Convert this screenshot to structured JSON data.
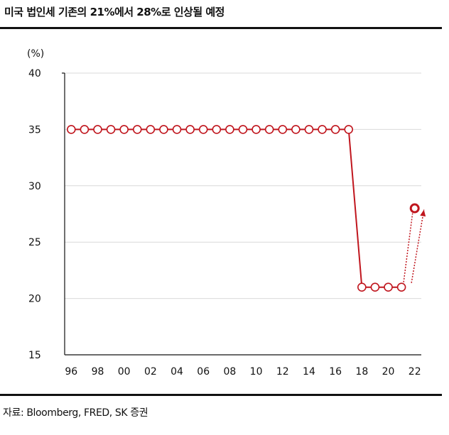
{
  "title": "미국 법인세 기존의 21%에서 28%로 인상될 예정",
  "source": "자료: Bloomberg, FRED, SK 증권",
  "colors": {
    "series": "#c0161e",
    "grid": "#d9d9d9",
    "axis": "#111111"
  },
  "chart_data": {
    "type": "line",
    "ylabel": "(%)",
    "ylim": [
      15,
      40
    ],
    "y_ticks": [
      "15",
      "20",
      "25",
      "30",
      "35",
      "40"
    ],
    "x_ticks": [
      "96",
      "98",
      "00",
      "02",
      "04",
      "06",
      "08",
      "10",
      "12",
      "14",
      "16",
      "18",
      "20",
      "22"
    ],
    "grid": "horizontal",
    "series": [
      {
        "x": [
          1996,
          1997,
          1998,
          1999,
          2000,
          2001,
          2002,
          2003,
          2004,
          2005,
          2006,
          2007,
          2008,
          2009,
          2010,
          2011,
          2012,
          2013,
          2014,
          2015,
          2016,
          2017,
          2018,
          2019,
          2020,
          2021
        ],
        "values": [
          35,
          35,
          35,
          35,
          35,
          35,
          35,
          35,
          35,
          35,
          35,
          35,
          35,
          35,
          35,
          35,
          35,
          35,
          35,
          35,
          35,
          35,
          21,
          21,
          21,
          21
        ],
        "style": "solid"
      },
      {
        "x": [
          2022
        ],
        "values": [
          28
        ],
        "style": "proposed"
      }
    ],
    "annotations": [
      {
        "type": "dotted-arrow",
        "from": [
          2021,
          21
        ],
        "to": [
          2022,
          28
        ]
      }
    ]
  }
}
